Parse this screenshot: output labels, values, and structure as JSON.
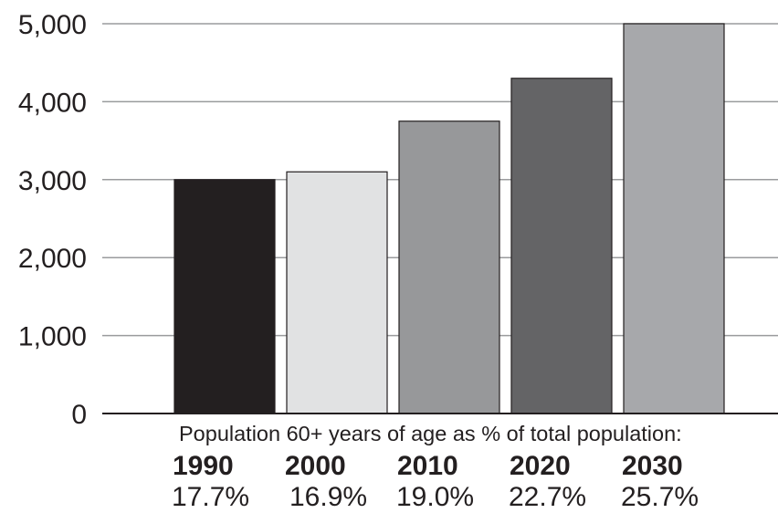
{
  "chart_data": {
    "type": "bar",
    "categories": [
      "1990",
      "2000",
      "2010",
      "2020",
      "2030"
    ],
    "values": [
      3000,
      3100,
      3750,
      4300,
      5000
    ],
    "bar_colors": [
      "#231f20",
      "#e1e2e3",
      "#97989a",
      "#646466",
      "#a7a8ab"
    ],
    "ylim": [
      0,
      5000
    ],
    "yticks": [
      0,
      1000,
      2000,
      3000,
      4000,
      5000
    ],
    "ytick_labels": [
      "0",
      "1,000",
      "2,000",
      "3,000",
      "4,000",
      "5,000"
    ],
    "grid": true,
    "annotation": "Population 60+ years of age as % of total population:",
    "percent_labels": [
      "17.7%",
      "16.9%",
      "19.0%",
      "22.7%",
      "25.7%"
    ]
  }
}
